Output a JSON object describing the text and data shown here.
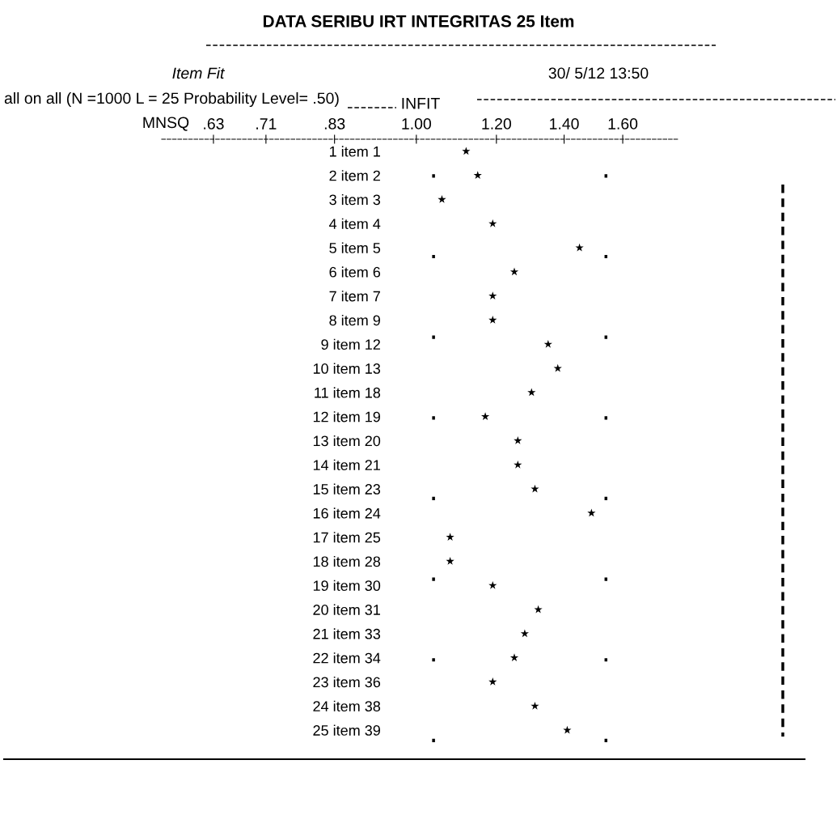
{
  "chart_data": {
    "type": "scatter",
    "title": "DATA SERIBU IRT INTEGRITAS 25 Item",
    "subtitle": "Item Fit",
    "xlabel": "INFIT",
    "annotations": [
      "30/ 5/12 13:50",
      "all on all (N =1000 L = 25 Probability Level= .50)",
      "MNSQ"
    ],
    "categories": [
      "1 item 1",
      "2 item 2",
      "3 item 3",
      "4 item 4",
      "5 item 5",
      "6 item 6",
      "7 item 7",
      "8 item 9",
      "9 item 12",
      "10 item 13",
      "11 item 18",
      "12 item 19",
      "13 item 20",
      "14 item 21",
      "15 item 23",
      "16 item 24",
      "17 item 25",
      "18 item 28",
      "19 item 30",
      "20 item 31",
      "21 item 33",
      "22 item 34",
      "23 item 36",
      "24 item 38",
      "25 item 39"
    ],
    "orientation": "horizontal",
    "series": [
      {
        "color": "#000000",
        "values": [
          1.12,
          1.15,
          1.06,
          1.19,
          1.45,
          1.25,
          1.19,
          1.19,
          1.35,
          1.38,
          1.3,
          1.17,
          1.26,
          1.26,
          1.31,
          1.49,
          1.08,
          1.08,
          1.19,
          1.32,
          1.28,
          1.25,
          1.19,
          1.31,
          1.41
        ]
      }
    ],
    "marker": "star",
    "log": "x",
    "xlim": [
      0.56,
      1.82
    ],
    "xticks": [
      {
        "value": 0.63,
        "label": ".63"
      },
      {
        "value": 0.71,
        "label": ".71"
      },
      {
        "value": 0.83,
        "label": ".83"
      },
      {
        "value": 1.0,
        "label": "1.00"
      },
      {
        "value": 1.2,
        "label": "1.20"
      },
      {
        "value": 1.4,
        "label": "1.40"
      },
      {
        "value": 1.6,
        "label": "1.60"
      }
    ],
    "ref_lines": [
      {
        "axis": "x",
        "value": 1.04,
        "color": "#000000",
        "line_style": "dotted"
      },
      {
        "axis": "x",
        "value": 1.54,
        "color": "#000000",
        "line_style": "dotted"
      }
    ],
    "grid": false,
    "legend": false
  }
}
